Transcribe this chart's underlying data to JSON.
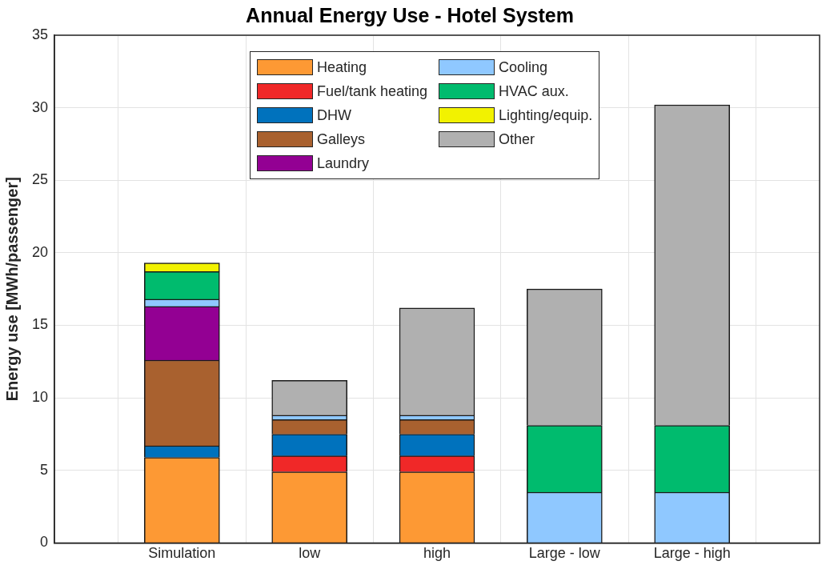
{
  "chart_data": {
    "type": "bar",
    "title": "Annual Energy Use - Hotel System",
    "ylabel": "Energy use [MWh/passenger]",
    "categories": [
      "Simulation",
      "low",
      "high",
      "Large - low",
      "Large - high"
    ],
    "stacked": true,
    "ylim": [
      0,
      35
    ],
    "yticks": [
      0,
      5,
      10,
      15,
      20,
      25,
      30,
      35
    ],
    "grid": true,
    "legend": "top",
    "series": [
      {
        "name": "Heating",
        "color": "#fd9934",
        "values": [
          5.9,
          4.9,
          4.9,
          0,
          0
        ]
      },
      {
        "name": "Fuel/tank heating",
        "color": "#f02828",
        "values": [
          0,
          1.1,
          1.1,
          0,
          0
        ]
      },
      {
        "name": "DHW",
        "color": "#0072bd",
        "values": [
          0.8,
          1.5,
          1.5,
          0,
          0
        ]
      },
      {
        "name": "Galleys",
        "color": "#a9612f",
        "values": [
          5.9,
          1.0,
          1.0,
          0,
          0
        ]
      },
      {
        "name": "Laundry",
        "color": "#930093",
        "values": [
          3.7,
          0,
          0,
          0,
          0
        ]
      },
      {
        "name": "Cooling",
        "color": "#8fc8ff",
        "values": [
          0.5,
          0.3,
          0.3,
          3.5,
          3.5
        ]
      },
      {
        "name": "HVAC aux.",
        "color": "#00bb6e",
        "values": [
          1.9,
          0,
          0,
          4.6,
          4.6
        ]
      },
      {
        "name": "Lighting/equip.",
        "color": "#f2f200",
        "values": [
          0.6,
          0,
          0,
          0,
          0
        ]
      },
      {
        "name": "Other",
        "color": "#b0b0b0",
        "values": [
          0,
          2.4,
          7.4,
          9.4,
          22.1
        ]
      }
    ]
  }
}
